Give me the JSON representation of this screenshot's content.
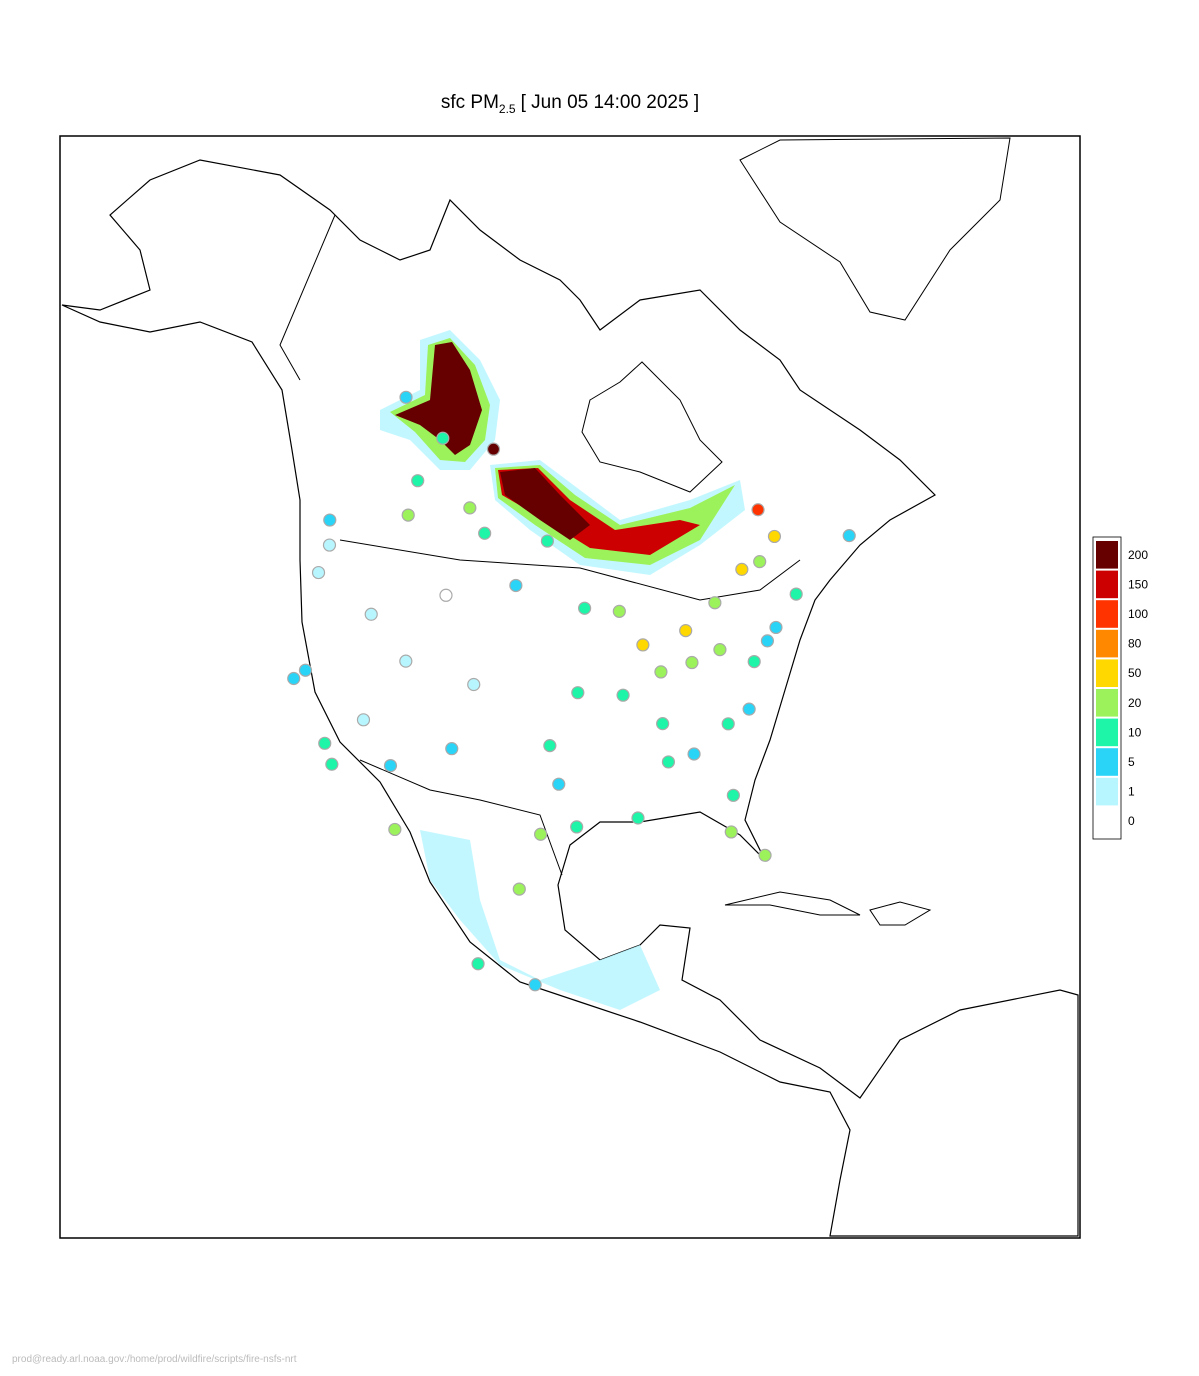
{
  "chart_data": {
    "type": "map",
    "title": {
      "main": "sfc PM",
      "sub": "2.5",
      "rest": "[ Jun 05 14:00 2025 ]"
    },
    "legend": {
      "levels": [
        0,
        1,
        5,
        10,
        20,
        50,
        80,
        100,
        150,
        200
      ],
      "colors": [
        "#ffffff",
        "#b8f6ff",
        "#2ad4f7",
        "#1ef5a8",
        "#9cf25a",
        "#ffd800",
        "#ff8800",
        "#ff3300",
        "#cc0000",
        "#660000"
      ]
    },
    "stations": [
      {
        "lon": -123,
        "lat": 49.3,
        "value": 5
      },
      {
        "lon": -114,
        "lat": 51,
        "value": 20
      },
      {
        "lon": -113.5,
        "lat": 53.5,
        "value": 10
      },
      {
        "lon": -106.6,
        "lat": 52.1,
        "value": 20
      },
      {
        "lon": -104.6,
        "lat": 50.4,
        "value": 10
      },
      {
        "lon": -97.1,
        "lat": 49.9,
        "value": 10
      },
      {
        "lon": -79.4,
        "lat": 43.7,
        "value": 20
      },
      {
        "lon": -75.7,
        "lat": 45.4,
        "value": 50
      },
      {
        "lon": -73.6,
        "lat": 45.5,
        "value": 20
      },
      {
        "lon": -71.2,
        "lat": 46.8,
        "value": 50
      },
      {
        "lon": -63.6,
        "lat": 44.6,
        "value": 5
      },
      {
        "lon": -117,
        "lat": 59,
        "value": 5
      },
      {
        "lon": -111,
        "lat": 56.7,
        "value": 10
      },
      {
        "lon": -122.3,
        "lat": 47.6,
        "value": 1
      },
      {
        "lon": -122.7,
        "lat": 45.5,
        "value": 1
      },
      {
        "lon": -121.5,
        "lat": 38.6,
        "value": 5
      },
      {
        "lon": -122.4,
        "lat": 37.8,
        "value": 5
      },
      {
        "lon": -118.2,
        "lat": 34,
        "value": 10
      },
      {
        "lon": -117.2,
        "lat": 32.7,
        "value": 10
      },
      {
        "lon": -115.1,
        "lat": 36.2,
        "value": 1
      },
      {
        "lon": -112,
        "lat": 33.4,
        "value": 5
      },
      {
        "lon": -111.9,
        "lat": 40.8,
        "value": 1
      },
      {
        "lon": -116.2,
        "lat": 43.6,
        "value": 1
      },
      {
        "lon": -104.9,
        "lat": 39.7,
        "value": 1
      },
      {
        "lon": -106.6,
        "lat": 35.1,
        "value": 5
      },
      {
        "lon": -108.5,
        "lat": 45.8,
        "value": 0
      },
      {
        "lon": -100.8,
        "lat": 46.8,
        "value": 5
      },
      {
        "lon": -97.5,
        "lat": 35.5,
        "value": 10
      },
      {
        "lon": -96.8,
        "lat": 32.8,
        "value": 5
      },
      {
        "lon": -95.4,
        "lat": 29.8,
        "value": 10
      },
      {
        "lon": -98.5,
        "lat": 29.4,
        "value": 20
      },
      {
        "lon": -90.1,
        "lat": 30,
        "value": 10
      },
      {
        "lon": -93.3,
        "lat": 45,
        "value": 10
      },
      {
        "lon": -87.6,
        "lat": 41.9,
        "value": 50
      },
      {
        "lon": -86.2,
        "lat": 39.8,
        "value": 20
      },
      {
        "lon": -83,
        "lat": 40,
        "value": 20
      },
      {
        "lon": -83,
        "lat": 42.3,
        "value": 50
      },
      {
        "lon": -90.2,
        "lat": 38.6,
        "value": 10
      },
      {
        "lon": -94.6,
        "lat": 39.1,
        "value": 10
      },
      {
        "lon": -86.8,
        "lat": 36.2,
        "value": 10
      },
      {
        "lon": -84.4,
        "lat": 33.7,
        "value": 5
      },
      {
        "lon": -86.8,
        "lat": 33.5,
        "value": 10
      },
      {
        "lon": -80.2,
        "lat": 25.8,
        "value": 20
      },
      {
        "lon": -82.5,
        "lat": 27.9,
        "value": 20
      },
      {
        "lon": -81.7,
        "lat": 30.3,
        "value": 10
      },
      {
        "lon": -80.8,
        "lat": 35.2,
        "value": 10
      },
      {
        "lon": -77,
        "lat": 38.9,
        "value": 10
      },
      {
        "lon": -75.2,
        "lat": 40,
        "value": 5
      },
      {
        "lon": -74,
        "lat": 40.7,
        "value": 5
      },
      {
        "lon": -71,
        "lat": 42.4,
        "value": 10
      },
      {
        "lon": -80,
        "lat": 40.4,
        "value": 20
      },
      {
        "lon": -78.6,
        "lat": 35.8,
        "value": 5
      },
      {
        "lon": -89.6,
        "lat": 44.5,
        "value": 20
      },
      {
        "lon": -72,
        "lat": 49,
        "value": 100
      },
      {
        "lon": -104,
        "lat": 56.3,
        "value": 200
      },
      {
        "lon": -99.1,
        "lat": 19.4,
        "value": 5
      },
      {
        "lon": -103.4,
        "lat": 20.7,
        "value": 10
      },
      {
        "lon": -100.3,
        "lat": 25.7,
        "value": 20
      },
      {
        "lon": -110.9,
        "lat": 29.1,
        "value": 20
      }
    ]
  },
  "footer": "prod@ready.arl.noaa.gov:/home/prod/wildfire/scripts/fire-nsfs-nrt"
}
